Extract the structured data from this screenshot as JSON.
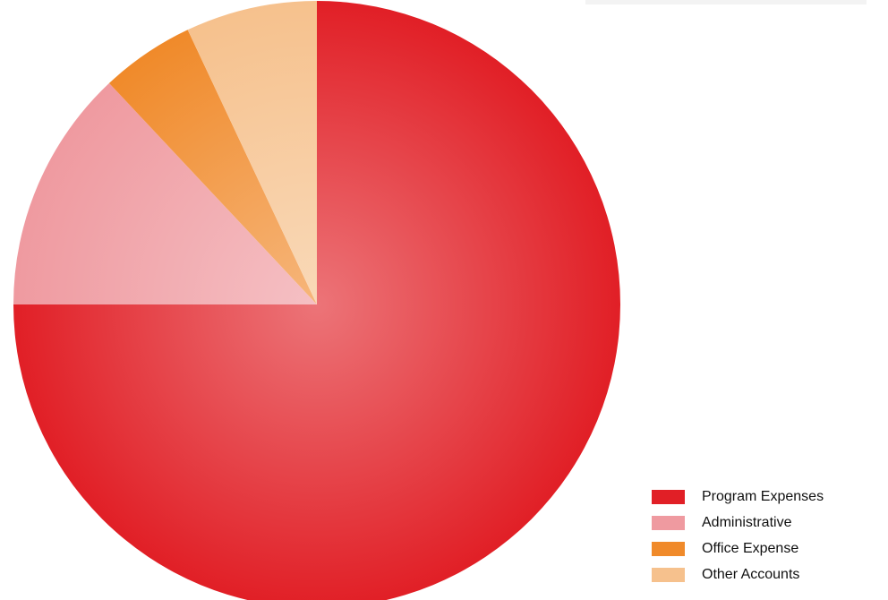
{
  "chart_data": {
    "type": "pie",
    "title": "",
    "categories": [
      "Program Expenses",
      "Administrative",
      "Office Expense",
      "Other Accounts"
    ],
    "values": [
      75,
      13,
      5,
      7
    ],
    "colors": [
      "#e11f26",
      "#ef9aa0",
      "#f08a2a",
      "#f6c18d"
    ],
    "legend_position": "bottom-right"
  }
}
